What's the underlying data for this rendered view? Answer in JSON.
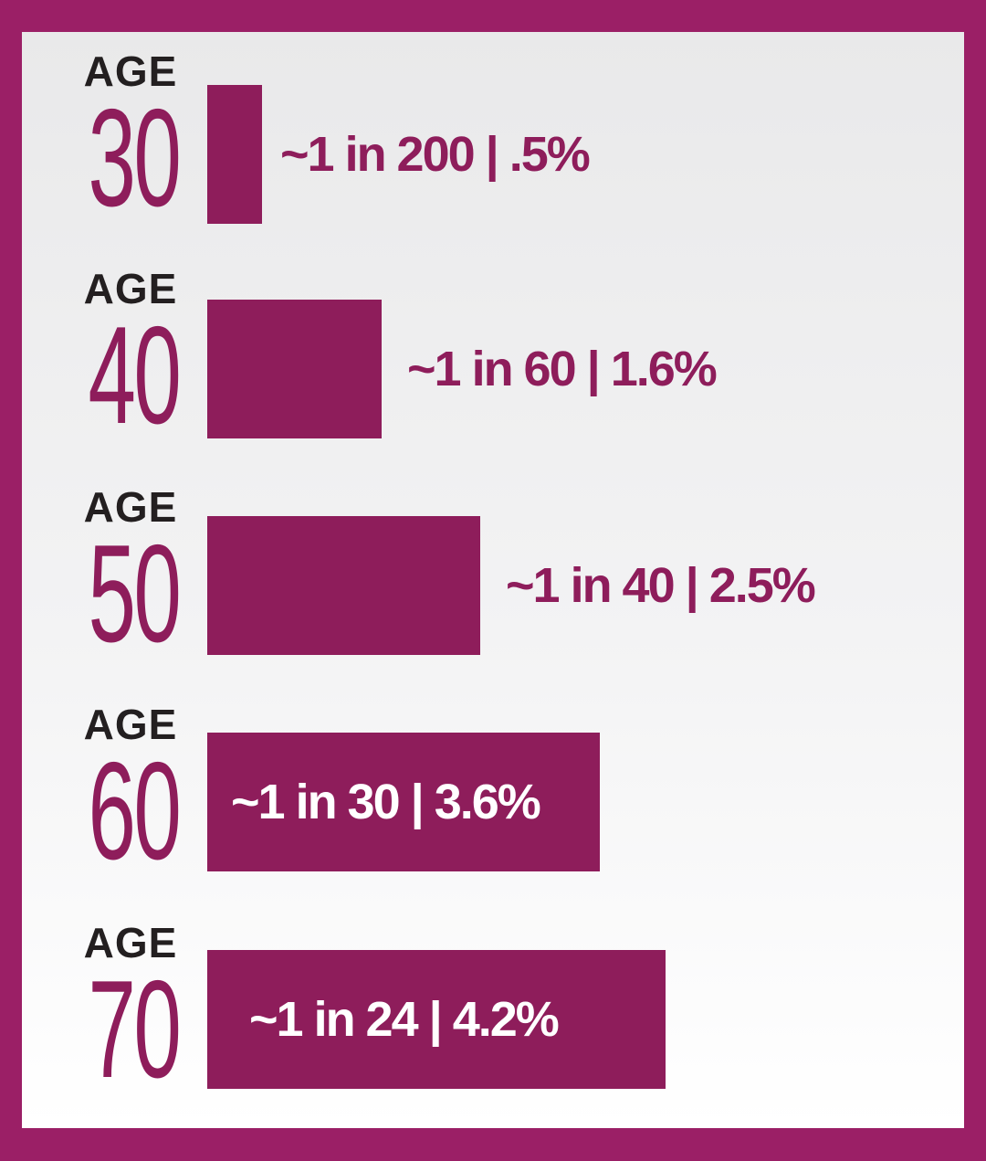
{
  "chart_data": {
    "type": "bar",
    "orientation": "horizontal",
    "title": "",
    "xlabel": "",
    "ylabel": "",
    "category_prefix": "AGE",
    "categories": [
      "30",
      "40",
      "50",
      "60",
      "70"
    ],
    "values": [
      0.5,
      1.6,
      2.5,
      3.6,
      4.2
    ],
    "value_unit": "%",
    "labels": [
      "~1 in 200 | .5%",
      "~1 in 60 | 1.6%",
      "~1 in 40 | 2.5%",
      "~1 in 30 | 3.6%",
      "~1 in 24 | 4.2%"
    ],
    "label_inside_bar": [
      false,
      false,
      false,
      true,
      true
    ],
    "colors": {
      "bar": "#8e1d5b",
      "border": "#9b1f66",
      "age_word": "#231f20"
    },
    "grid": false,
    "legend": "none"
  }
}
